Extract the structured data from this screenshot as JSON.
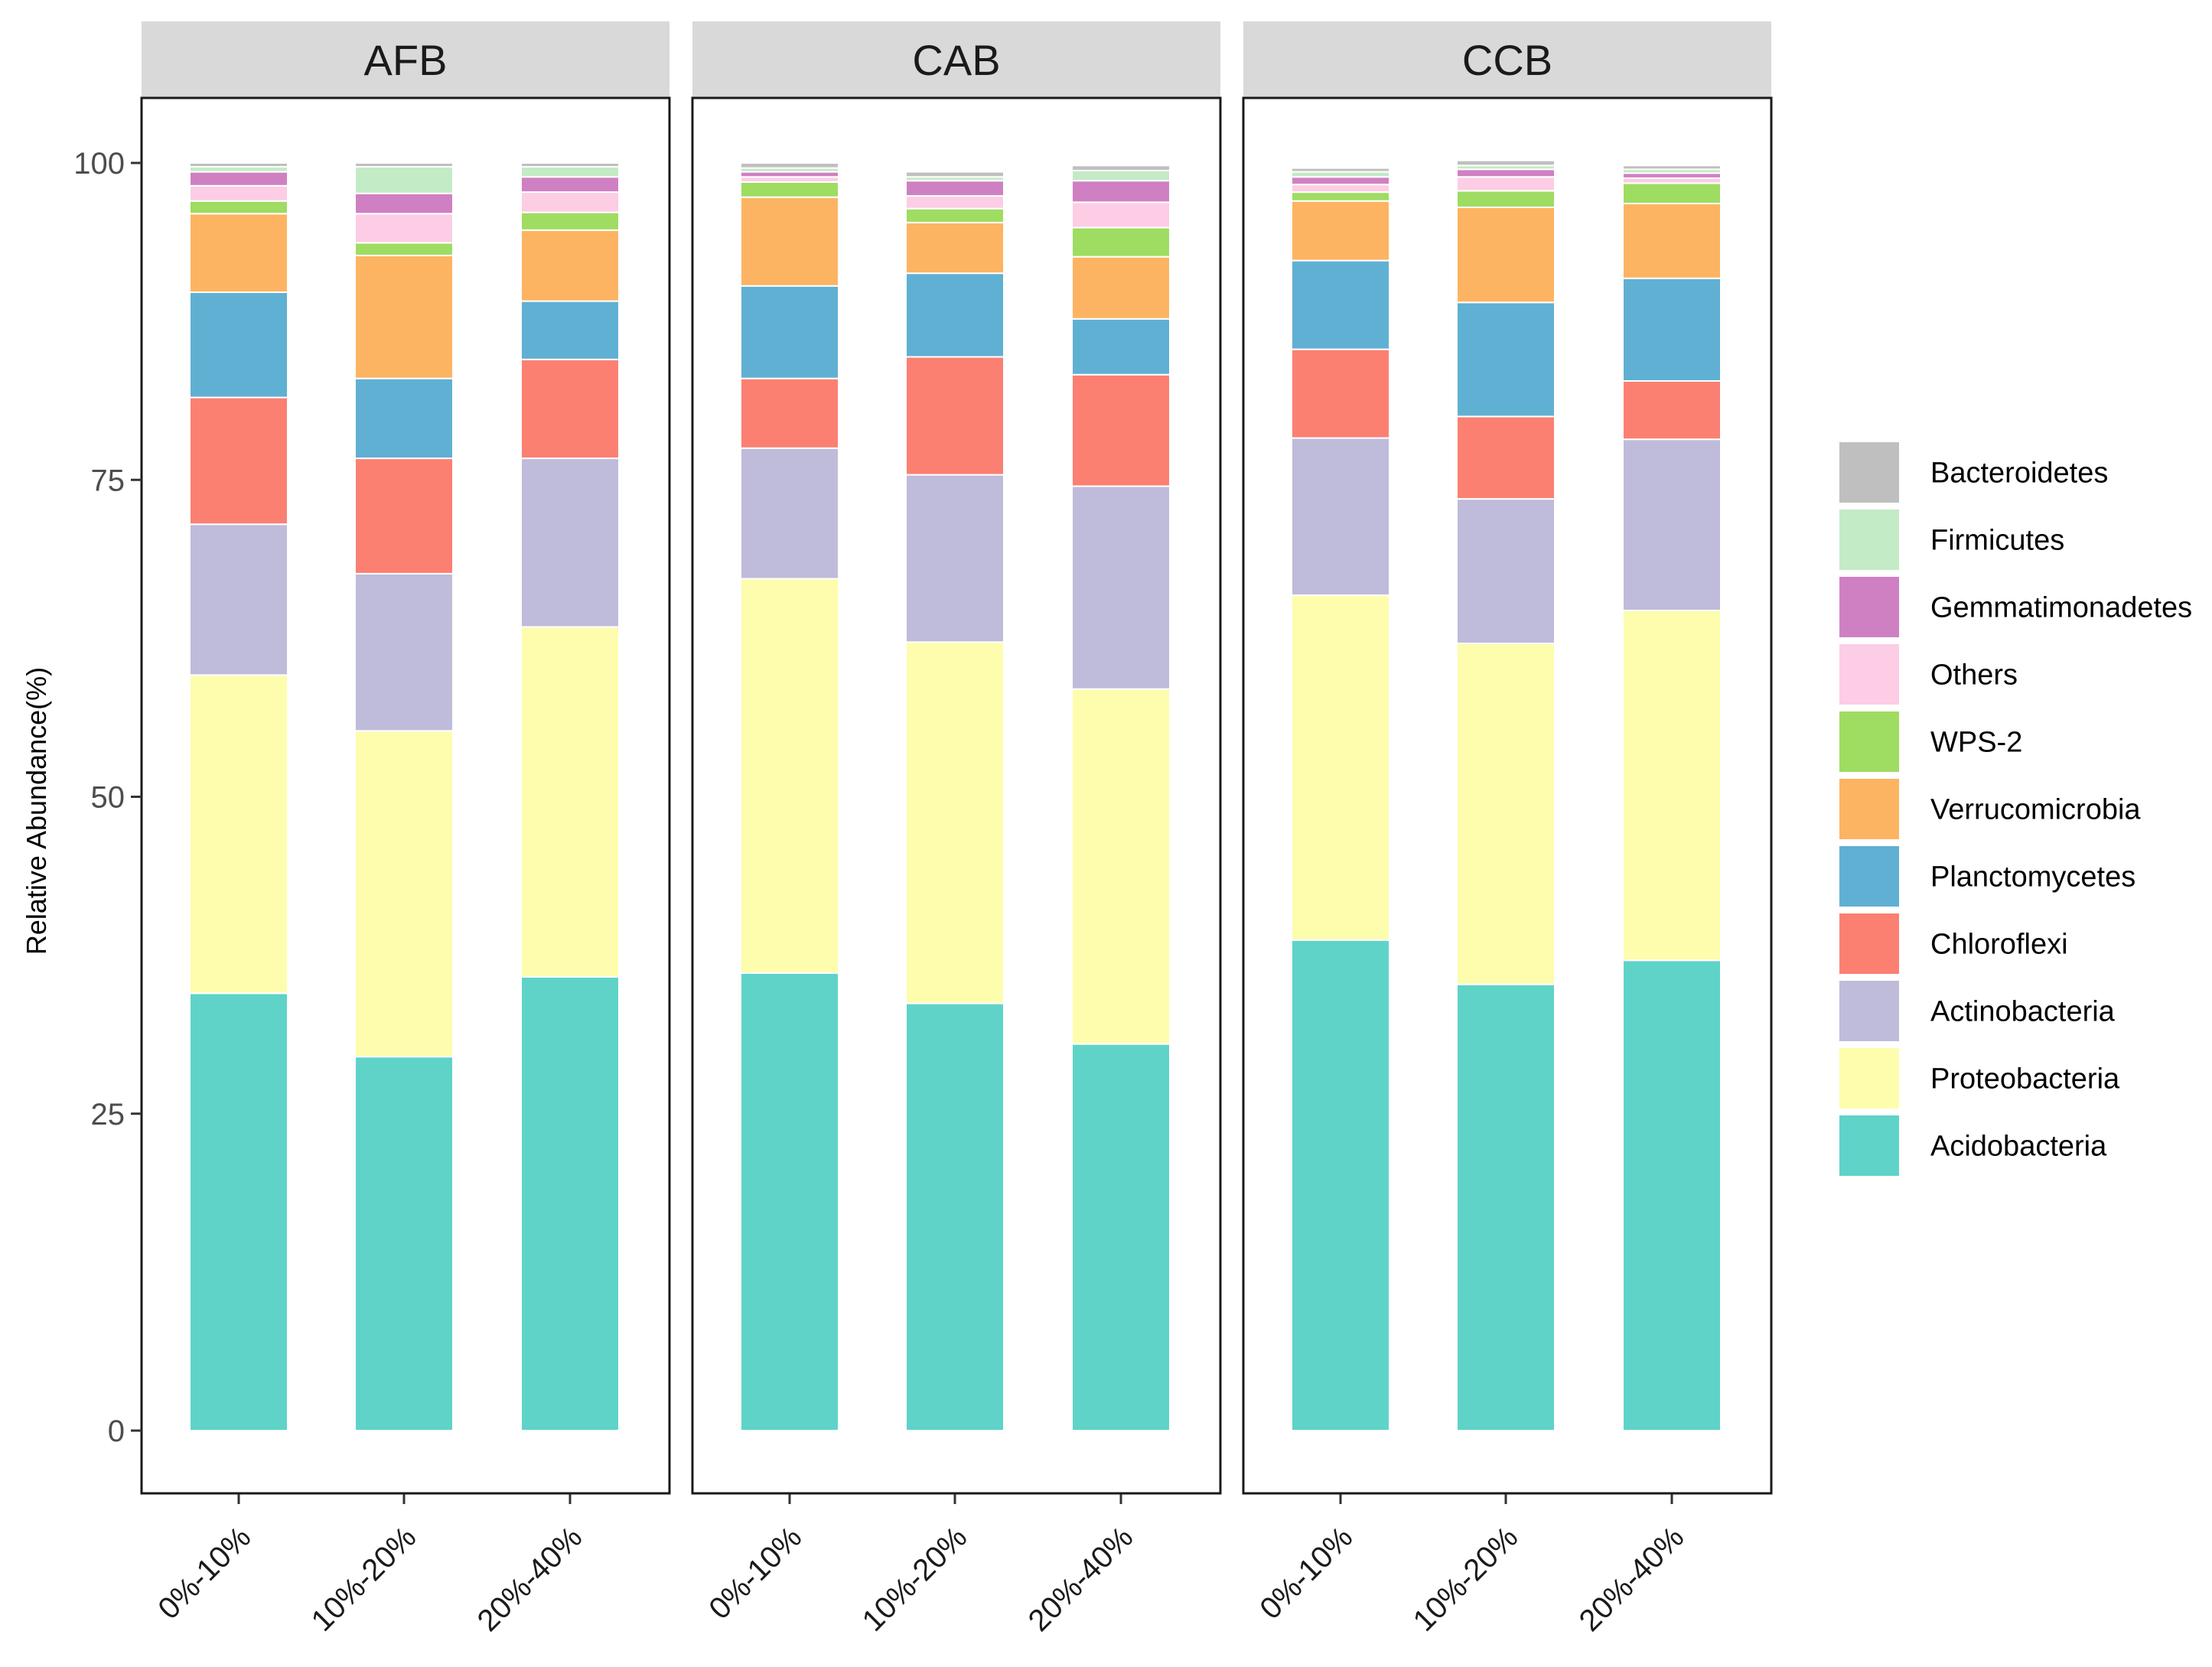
{
  "chart_data": {
    "type": "bar",
    "stacked": true,
    "ylabel": "Relative Abundance(%)",
    "ylim": [
      0,
      100
    ],
    "yticks": [
      0,
      25,
      50,
      75,
      100
    ],
    "grid": false,
    "legend_position": "right",
    "categories": [
      "0%-10%",
      "10%-20%",
      "20%-40%"
    ],
    "panels": [
      "AFB",
      "CAB",
      "CCB"
    ],
    "series": [
      {
        "name": "Acidobacteria",
        "color": "#5fd3c8",
        "values": {
          "AFB": [
            34.5,
            29.5,
            35.8
          ],
          "CAB": [
            36.1,
            33.7,
            30.5
          ],
          "CCB": [
            38.7,
            35.2,
            37.1
          ]
        }
      },
      {
        "name": "Proteobacteria",
        "color": "#fdfdad",
        "values": {
          "AFB": [
            25.1,
            25.7,
            27.6
          ],
          "CAB": [
            31.1,
            28.5,
            28.0
          ],
          "CCB": [
            27.2,
            26.9,
            27.6
          ]
        }
      },
      {
        "name": "Actinobacteria",
        "color": "#bfbbda",
        "values": {
          "AFB": [
            11.9,
            12.4,
            13.3
          ],
          "CAB": [
            10.3,
            13.2,
            16.0
          ],
          "CCB": [
            12.4,
            11.4,
            13.5
          ]
        }
      },
      {
        "name": "Chloroflexi",
        "color": "#fb8072",
        "values": {
          "AFB": [
            10.0,
            9.1,
            7.8
          ],
          "CAB": [
            5.5,
            9.3,
            8.8
          ],
          "CCB": [
            7.0,
            6.5,
            4.6
          ]
        }
      },
      {
        "name": "Planctomycetes",
        "color": "#60b0d3",
        "values": {
          "AFB": [
            8.3,
            6.3,
            4.6
          ],
          "CAB": [
            7.3,
            6.6,
            4.4
          ],
          "CCB": [
            7.0,
            9.0,
            8.1
          ]
        }
      },
      {
        "name": "Verrucomicrobia",
        "color": "#fdb462",
        "values": {
          "AFB": [
            6.2,
            9.7,
            5.6
          ],
          "CAB": [
            7.0,
            4.0,
            4.9
          ],
          "CCB": [
            4.7,
            7.5,
            5.9
          ]
        }
      },
      {
        "name": "WPS-2",
        "color": "#9edc62",
        "values": {
          "AFB": [
            1.0,
            1.0,
            1.4
          ],
          "CAB": [
            1.2,
            1.1,
            2.3
          ],
          "CCB": [
            0.7,
            1.3,
            1.6
          ]
        }
      },
      {
        "name": "Others",
        "color": "#fccde5",
        "values": {
          "AFB": [
            1.2,
            2.3,
            1.6
          ],
          "CAB": [
            0.4,
            1.0,
            2.0
          ],
          "CCB": [
            0.6,
            1.1,
            0.4
          ]
        }
      },
      {
        "name": "Gemmatimonadetes",
        "color": "#cf80c2",
        "values": {
          "AFB": [
            1.1,
            1.6,
            1.2
          ],
          "CAB": [
            0.4,
            1.2,
            1.7
          ],
          "CCB": [
            0.6,
            0.6,
            0.4
          ]
        }
      },
      {
        "name": "Firmicutes",
        "color": "#c3ebc6",
        "values": {
          "AFB": [
            0.4,
            2.1,
            0.8
          ],
          "CAB": [
            0.3,
            0.3,
            0.8
          ],
          "CCB": [
            0.4,
            0.3,
            0.3
          ]
        }
      },
      {
        "name": "Bacteroidetes",
        "color": "#bfbfbf",
        "values": {
          "AFB": [
            0.3,
            0.3,
            0.3
          ],
          "CAB": [
            0.4,
            0.4,
            0.4
          ],
          "CCB": [
            0.3,
            0.4,
            0.3
          ]
        }
      }
    ],
    "legend_order": [
      "Bacteroidetes",
      "Firmicutes",
      "Gemmatimonadetes",
      "Others",
      "WPS-2",
      "Verrucomicrobia",
      "Planctomycetes",
      "Chloroflexi",
      "Actinobacteria",
      "Proteobacteria",
      "Acidobacteria"
    ]
  }
}
